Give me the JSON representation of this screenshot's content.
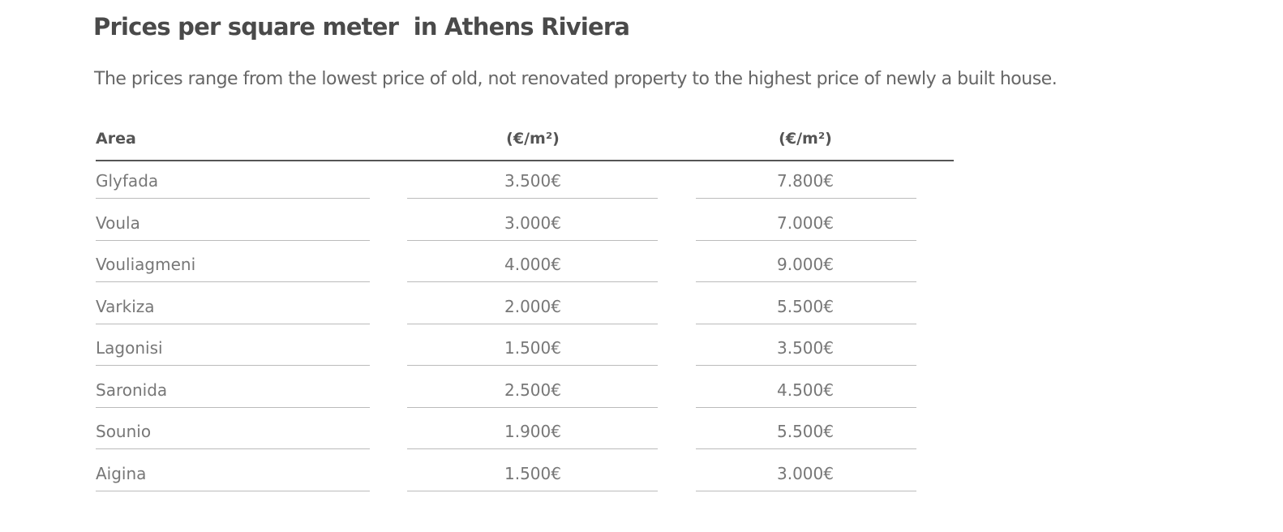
{
  "header": {
    "title": "Prices per square meter  in Athens Riviera",
    "subtitle": "The prices range from the lowest price of old, not renovated property to the highest price of newly a built house."
  },
  "table": {
    "columns": [
      "Area",
      "(€/m²)",
      "(€/m²)"
    ],
    "rows": [
      [
        "Glyfada",
        "3.500€",
        "7.800€"
      ],
      [
        "Voula",
        "3.000€",
        "7.000€"
      ],
      [
        "Vouliagmeni",
        "4.000€",
        "9.000€"
      ],
      [
        "Varkiza",
        "2.000€",
        "5.500€"
      ],
      [
        "Lagonisi",
        "1.500€",
        "3.500€"
      ],
      [
        "Saronida",
        "2.500€",
        "4.500€"
      ],
      [
        "Sounio",
        "1.900€",
        "5.500€"
      ],
      [
        "Aigina",
        "1.500€",
        "3.000€"
      ]
    ]
  }
}
